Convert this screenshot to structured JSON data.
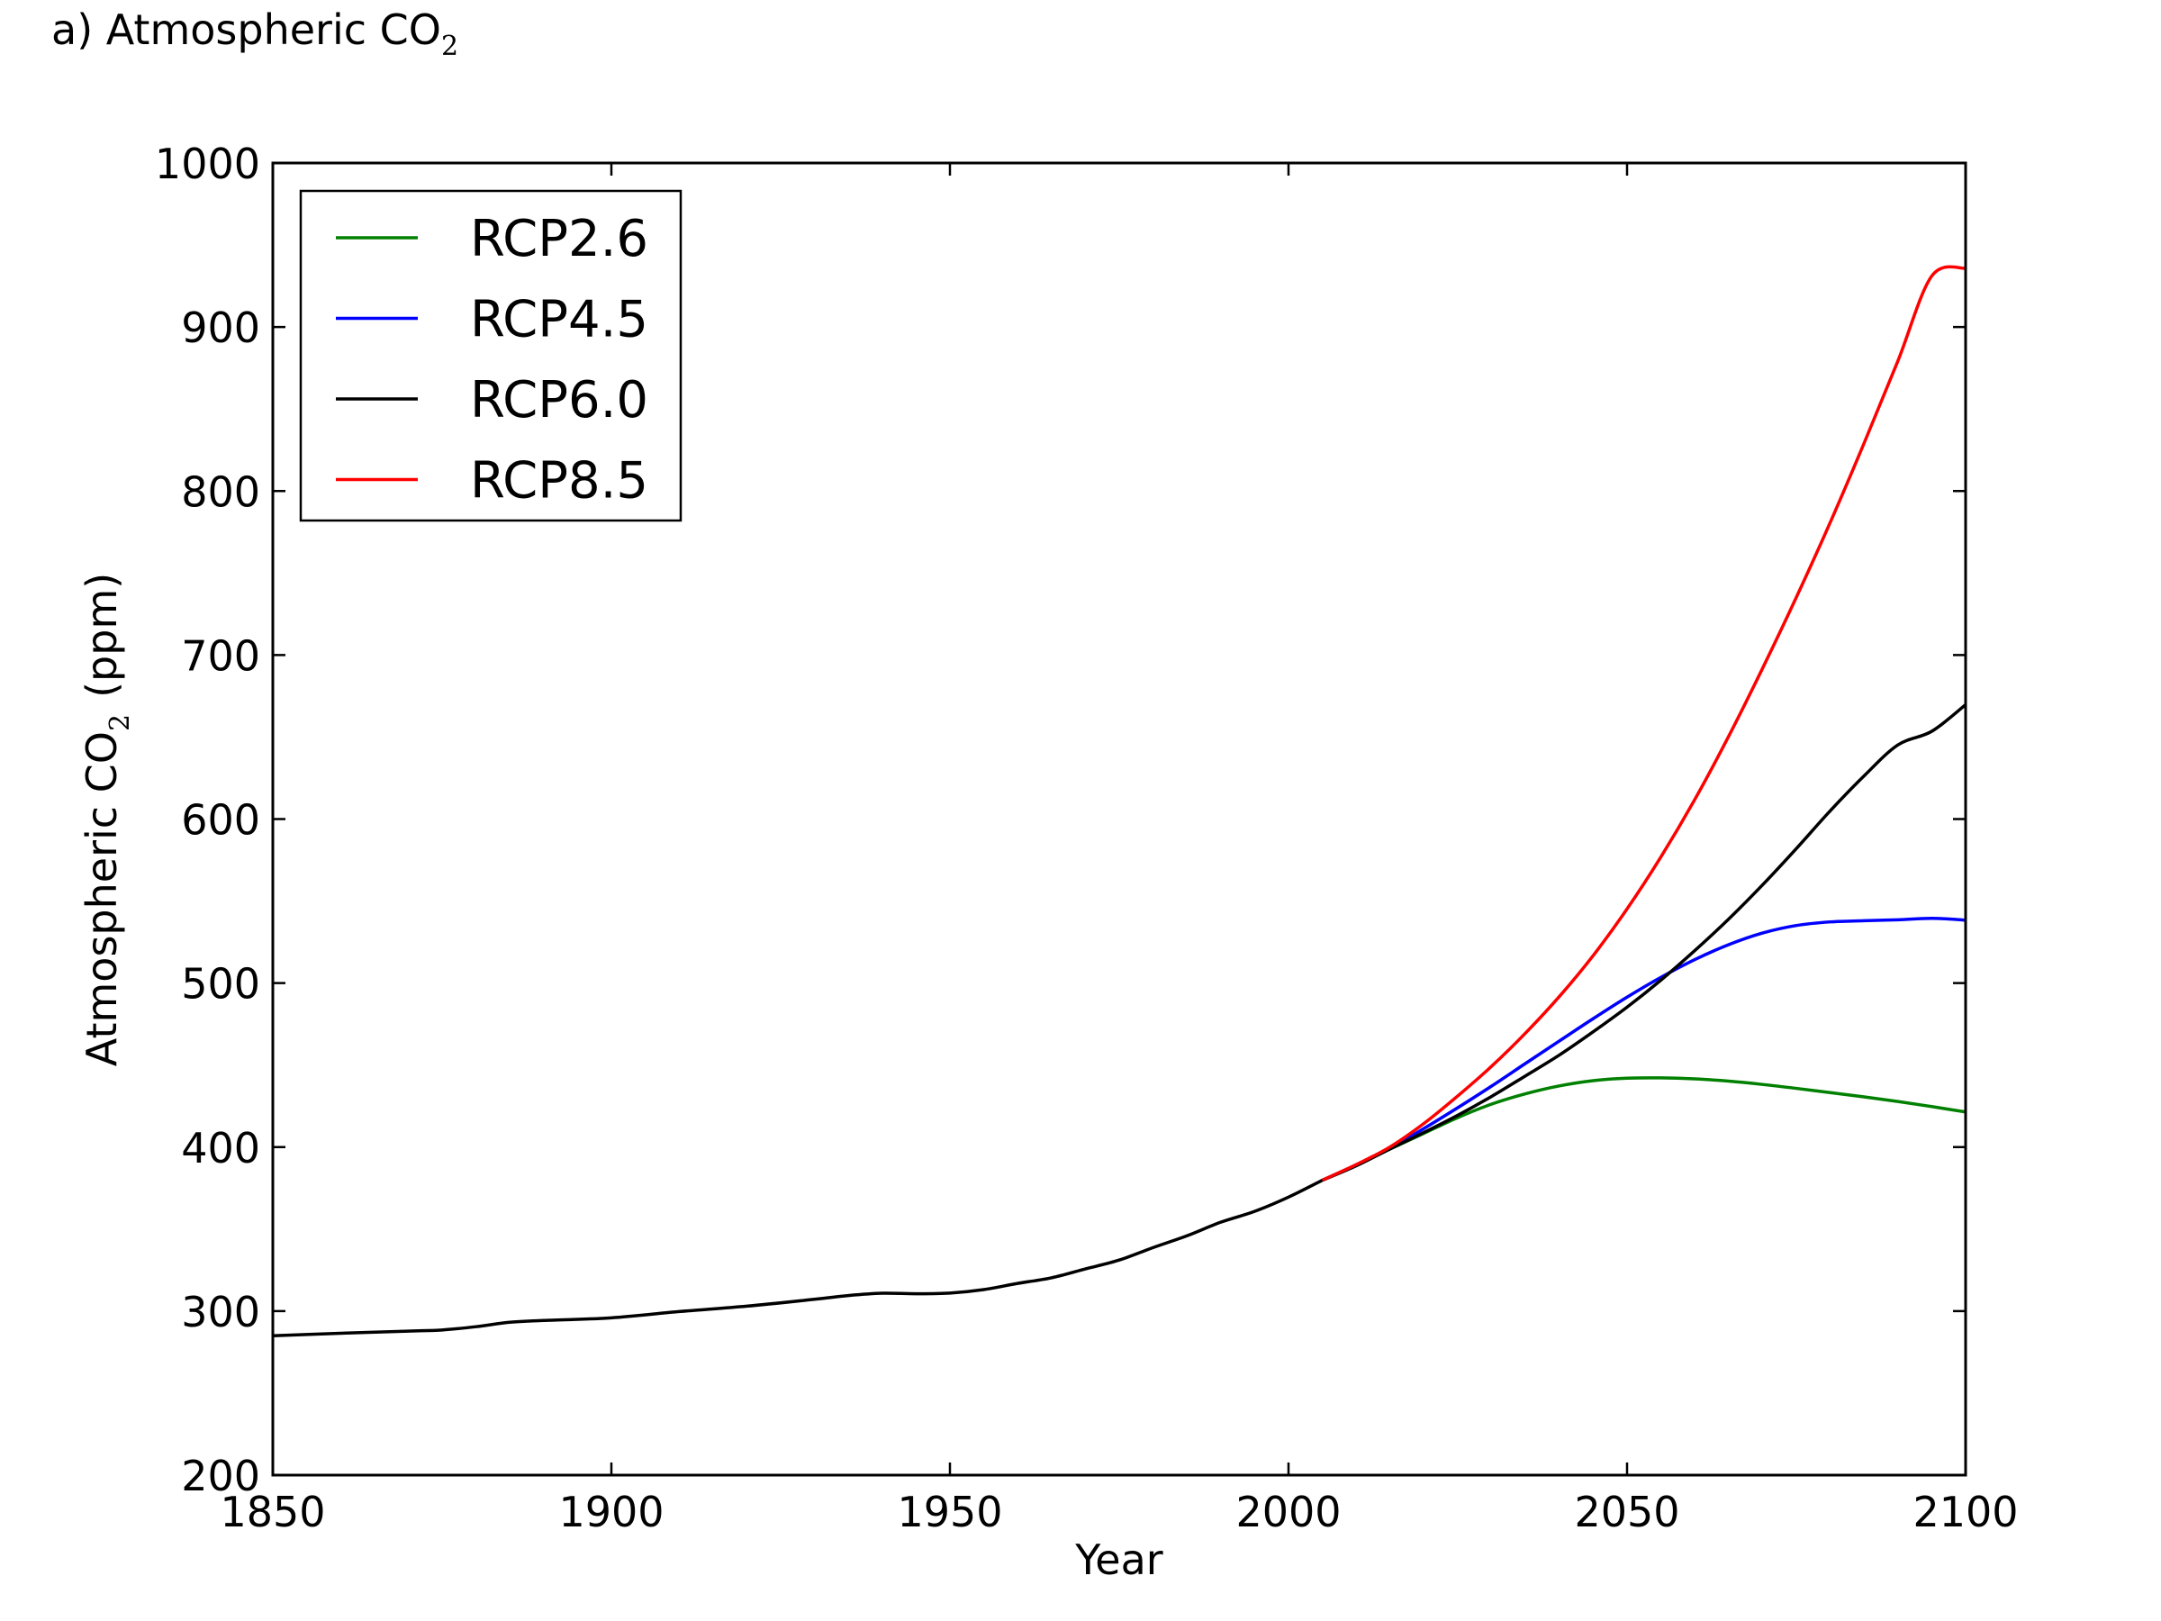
{
  "figure": {
    "title_main": "a) Atmospheric CO",
    "title_sub": "2"
  },
  "chart_data": {
    "type": "line",
    "xlabel": "Year",
    "ylabel_main": "Atmospheric CO",
    "ylabel_sub": "2",
    "ylabel_unit": "(ppm)",
    "xlim": [
      1850,
      2100
    ],
    "ylim": [
      200,
      1000
    ],
    "xticks": [
      1850,
      1900,
      1950,
      2000,
      2050,
      2100
    ],
    "yticks": [
      200,
      300,
      400,
      500,
      600,
      700,
      800,
      900,
      1000
    ],
    "grid": false,
    "legend_position": "top-left",
    "historical": {
      "x": [
        1850,
        1860,
        1870,
        1875,
        1880,
        1885,
        1890,
        1900,
        1910,
        1920,
        1930,
        1935,
        1940,
        1945,
        1950,
        1955,
        1960,
        1965,
        1970,
        1975,
        1980,
        1985,
        1990,
        1995,
        2000,
        2005
      ],
      "y": [
        285,
        286.5,
        287.8,
        288.5,
        290.5,
        293.2,
        294.3,
        295.9,
        299.7,
        303,
        307.2,
        309.5,
        310.9,
        310.6,
        311,
        313.1,
        316.9,
        320.3,
        325.7,
        331.1,
        338.7,
        345.9,
        354.2,
        360.8,
        369.5,
        379.8
      ]
    },
    "series": [
      {
        "name": "RCP2.6",
        "color": "#008000",
        "x": [
          2005,
          2010,
          2015,
          2020,
          2025,
          2030,
          2035,
          2040,
          2045,
          2050,
          2055,
          2060,
          2065,
          2070,
          2075,
          2080,
          2085,
          2090,
          2095,
          2100
        ],
        "y": [
          379.8,
          389.1,
          398.8,
          408.4,
          418,
          426.2,
          432.5,
          437.3,
          440.5,
          442,
          442.2,
          441.6,
          440.2,
          438.2,
          435.8,
          433.2,
          430.6,
          427.8,
          424.7,
          421.4
        ]
      },
      {
        "name": "RCP4.5",
        "color": "#0000ff",
        "x": [
          2005,
          2010,
          2015,
          2020,
          2025,
          2030,
          2035,
          2040,
          2045,
          2050,
          2055,
          2060,
          2065,
          2070,
          2075,
          2080,
          2085,
          2090,
          2095,
          2100
        ],
        "y": [
          379.8,
          389.1,
          399.3,
          411.3,
          424,
          437.2,
          451,
          464.7,
          478.3,
          491.4,
          503.5,
          514.3,
          523.4,
          530.5,
          535.1,
          537.3,
          538,
          538.6,
          539.5,
          538.4
        ]
      },
      {
        "name": "RCP6.0",
        "color": "#000000",
        "x": [
          2005,
          2010,
          2015,
          2020,
          2025,
          2030,
          2035,
          2040,
          2045,
          2050,
          2055,
          2060,
          2065,
          2070,
          2075,
          2080,
          2085,
          2090,
          2095,
          2100
        ],
        "y": [
          379.8,
          388.6,
          398.9,
          408.9,
          419.4,
          430.9,
          443.4,
          456.1,
          470.3,
          485.3,
          501.8,
          519.8,
          539,
          559.8,
          582,
          605,
          626.3,
          645.2,
          653.5,
          669.7
        ]
      },
      {
        "name": "RCP8.5",
        "color": "#ff0000",
        "x": [
          2005,
          2010,
          2015,
          2020,
          2025,
          2030,
          2035,
          2040,
          2045,
          2050,
          2055,
          2060,
          2065,
          2070,
          2075,
          2080,
          2085,
          2090,
          2095,
          2100
        ],
        "y": [
          379.8,
          389.3,
          400.1,
          414.4,
          431.2,
          449.3,
          469.5,
          491.8,
          516.8,
          545.2,
          576.9,
          611.9,
          650.4,
          691.8,
          735.2,
          780.8,
          829.1,
          879.3,
          931.1,
          935.9
        ]
      }
    ]
  },
  "colors": {
    "axis": "#000000",
    "background": "#ffffff"
  }
}
